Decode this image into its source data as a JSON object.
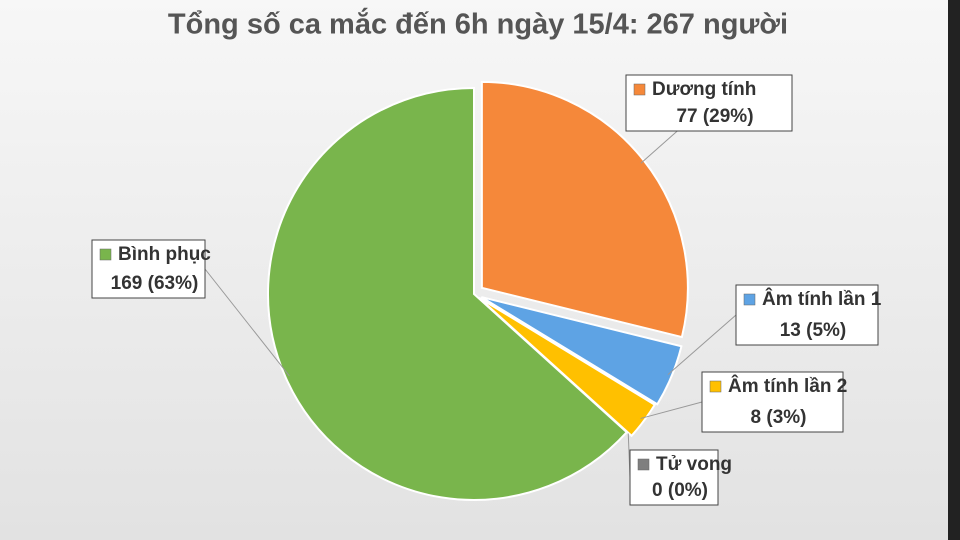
{
  "chart_data": {
    "type": "pie",
    "title": "Tổng số ca mắc đến 6h ngày 15/4: 267 người",
    "categories": [
      "Dương tính",
      "Âm tính lần 1",
      "Âm tính lần 2",
      "Tử vong",
      "Bình phục"
    ],
    "values": [
      77,
      13,
      8,
      0,
      169
    ],
    "value_labels": [
      "77 (29%)",
      "13 (5%)",
      "8 (3%)",
      "0 (0%)",
      "169 (63%)"
    ],
    "colors": [
      "#f5883a",
      "#5ea3e4",
      "#ffc000",
      "#7f7f7f",
      "#79b54c"
    ]
  }
}
